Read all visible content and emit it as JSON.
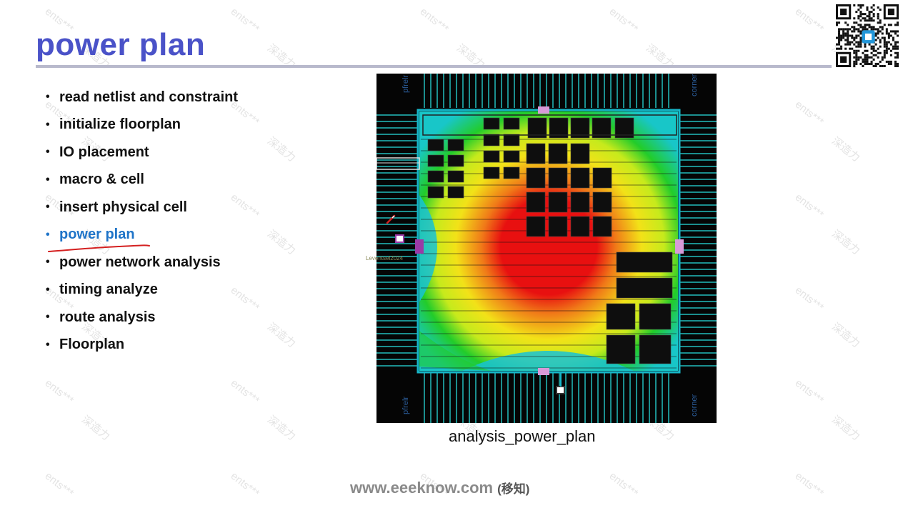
{
  "slide": {
    "title": "power plan",
    "bullets": [
      {
        "label": "read netlist and constraint",
        "active": false
      },
      {
        "label": "initialize floorplan",
        "active": false
      },
      {
        "label": "IO placement",
        "active": false
      },
      {
        "label": "macro & cell",
        "active": false
      },
      {
        "label": "insert physical cell",
        "active": false
      },
      {
        "label": "power plan",
        "active": true
      },
      {
        "label": "power network analysis",
        "active": false
      },
      {
        "label": "timing analyze",
        "active": false
      },
      {
        "label": "route analysis",
        "active": false
      },
      {
        "label": "Floorplan",
        "active": false
      }
    ],
    "figure": {
      "caption": "analysis_power_plan",
      "corner_labels": {
        "top_left": "pfrelr",
        "top_right": "corner",
        "bottom_left": "pfrelr",
        "bottom_right": "corner"
      },
      "stamp_text": "Leventsel2024"
    },
    "footer": {
      "url": "www.eeeknow.com",
      "cn": "(移知)"
    },
    "watermark": {
      "line1": "ents***",
      "line2": "深造力"
    },
    "colors": {
      "title": "#4a52c8",
      "active_bullet": "#1f74c8",
      "annotation": "#d42020"
    }
  }
}
